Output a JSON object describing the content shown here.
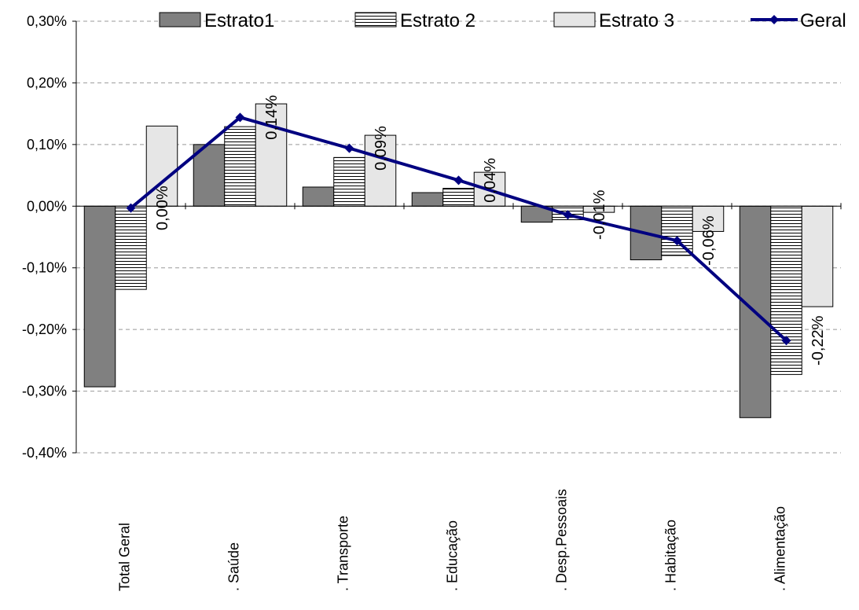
{
  "chart_data": {
    "type": "bar",
    "categories": [
      "Total Geral",
      ". Saúde",
      ". Transporte",
      ". Educação",
      ". Desp.Pessoais",
      ". Habitação",
      ". Alimentação"
    ],
    "series": [
      {
        "name": "Estrato1",
        "color": "#808080",
        "values": [
          -0.293,
          0.1,
          0.031,
          0.022,
          -0.026,
          -0.087,
          -0.343
        ]
      },
      {
        "name": "Estrato 2",
        "color": "#ffffff",
        "hatch": "horizontal",
        "values": [
          -0.135,
          0.129,
          0.079,
          0.029,
          -0.022,
          -0.08,
          -0.273
        ]
      },
      {
        "name": "Estrato 3",
        "color": "#e6e6e6",
        "values": [
          0.13,
          0.166,
          0.115,
          0.055,
          -0.01,
          -0.041,
          -0.163
        ]
      },
      {
        "name": "Geral",
        "type": "line",
        "color": "#000080",
        "values": [
          -0.003,
          0.144,
          0.094,
          0.042,
          -0.014,
          -0.056,
          -0.218
        ],
        "value_labels": [
          "0,00%",
          "0,14%",
          "0,09%",
          "0,04%",
          "-0,01%",
          "-0,06%",
          "-0,22%"
        ]
      }
    ],
    "ylim": [
      -0.4,
      0.3
    ],
    "yticks": [
      {
        "value": 0.3,
        "label": "0,30%"
      },
      {
        "value": 0.2,
        "label": "0,20%"
      },
      {
        "value": 0.1,
        "label": "0,10%"
      },
      {
        "value": 0,
        "label": "0,00%"
      },
      {
        "value": -0.1,
        "label": "-0,10%"
      },
      {
        "value": -0.2,
        "label": "-0,20%"
      },
      {
        "value": -0.3,
        "label": "-0,30%"
      },
      {
        "value": -0.4,
        "label": "-0,40%"
      }
    ],
    "grid": true,
    "legend": "top"
  }
}
